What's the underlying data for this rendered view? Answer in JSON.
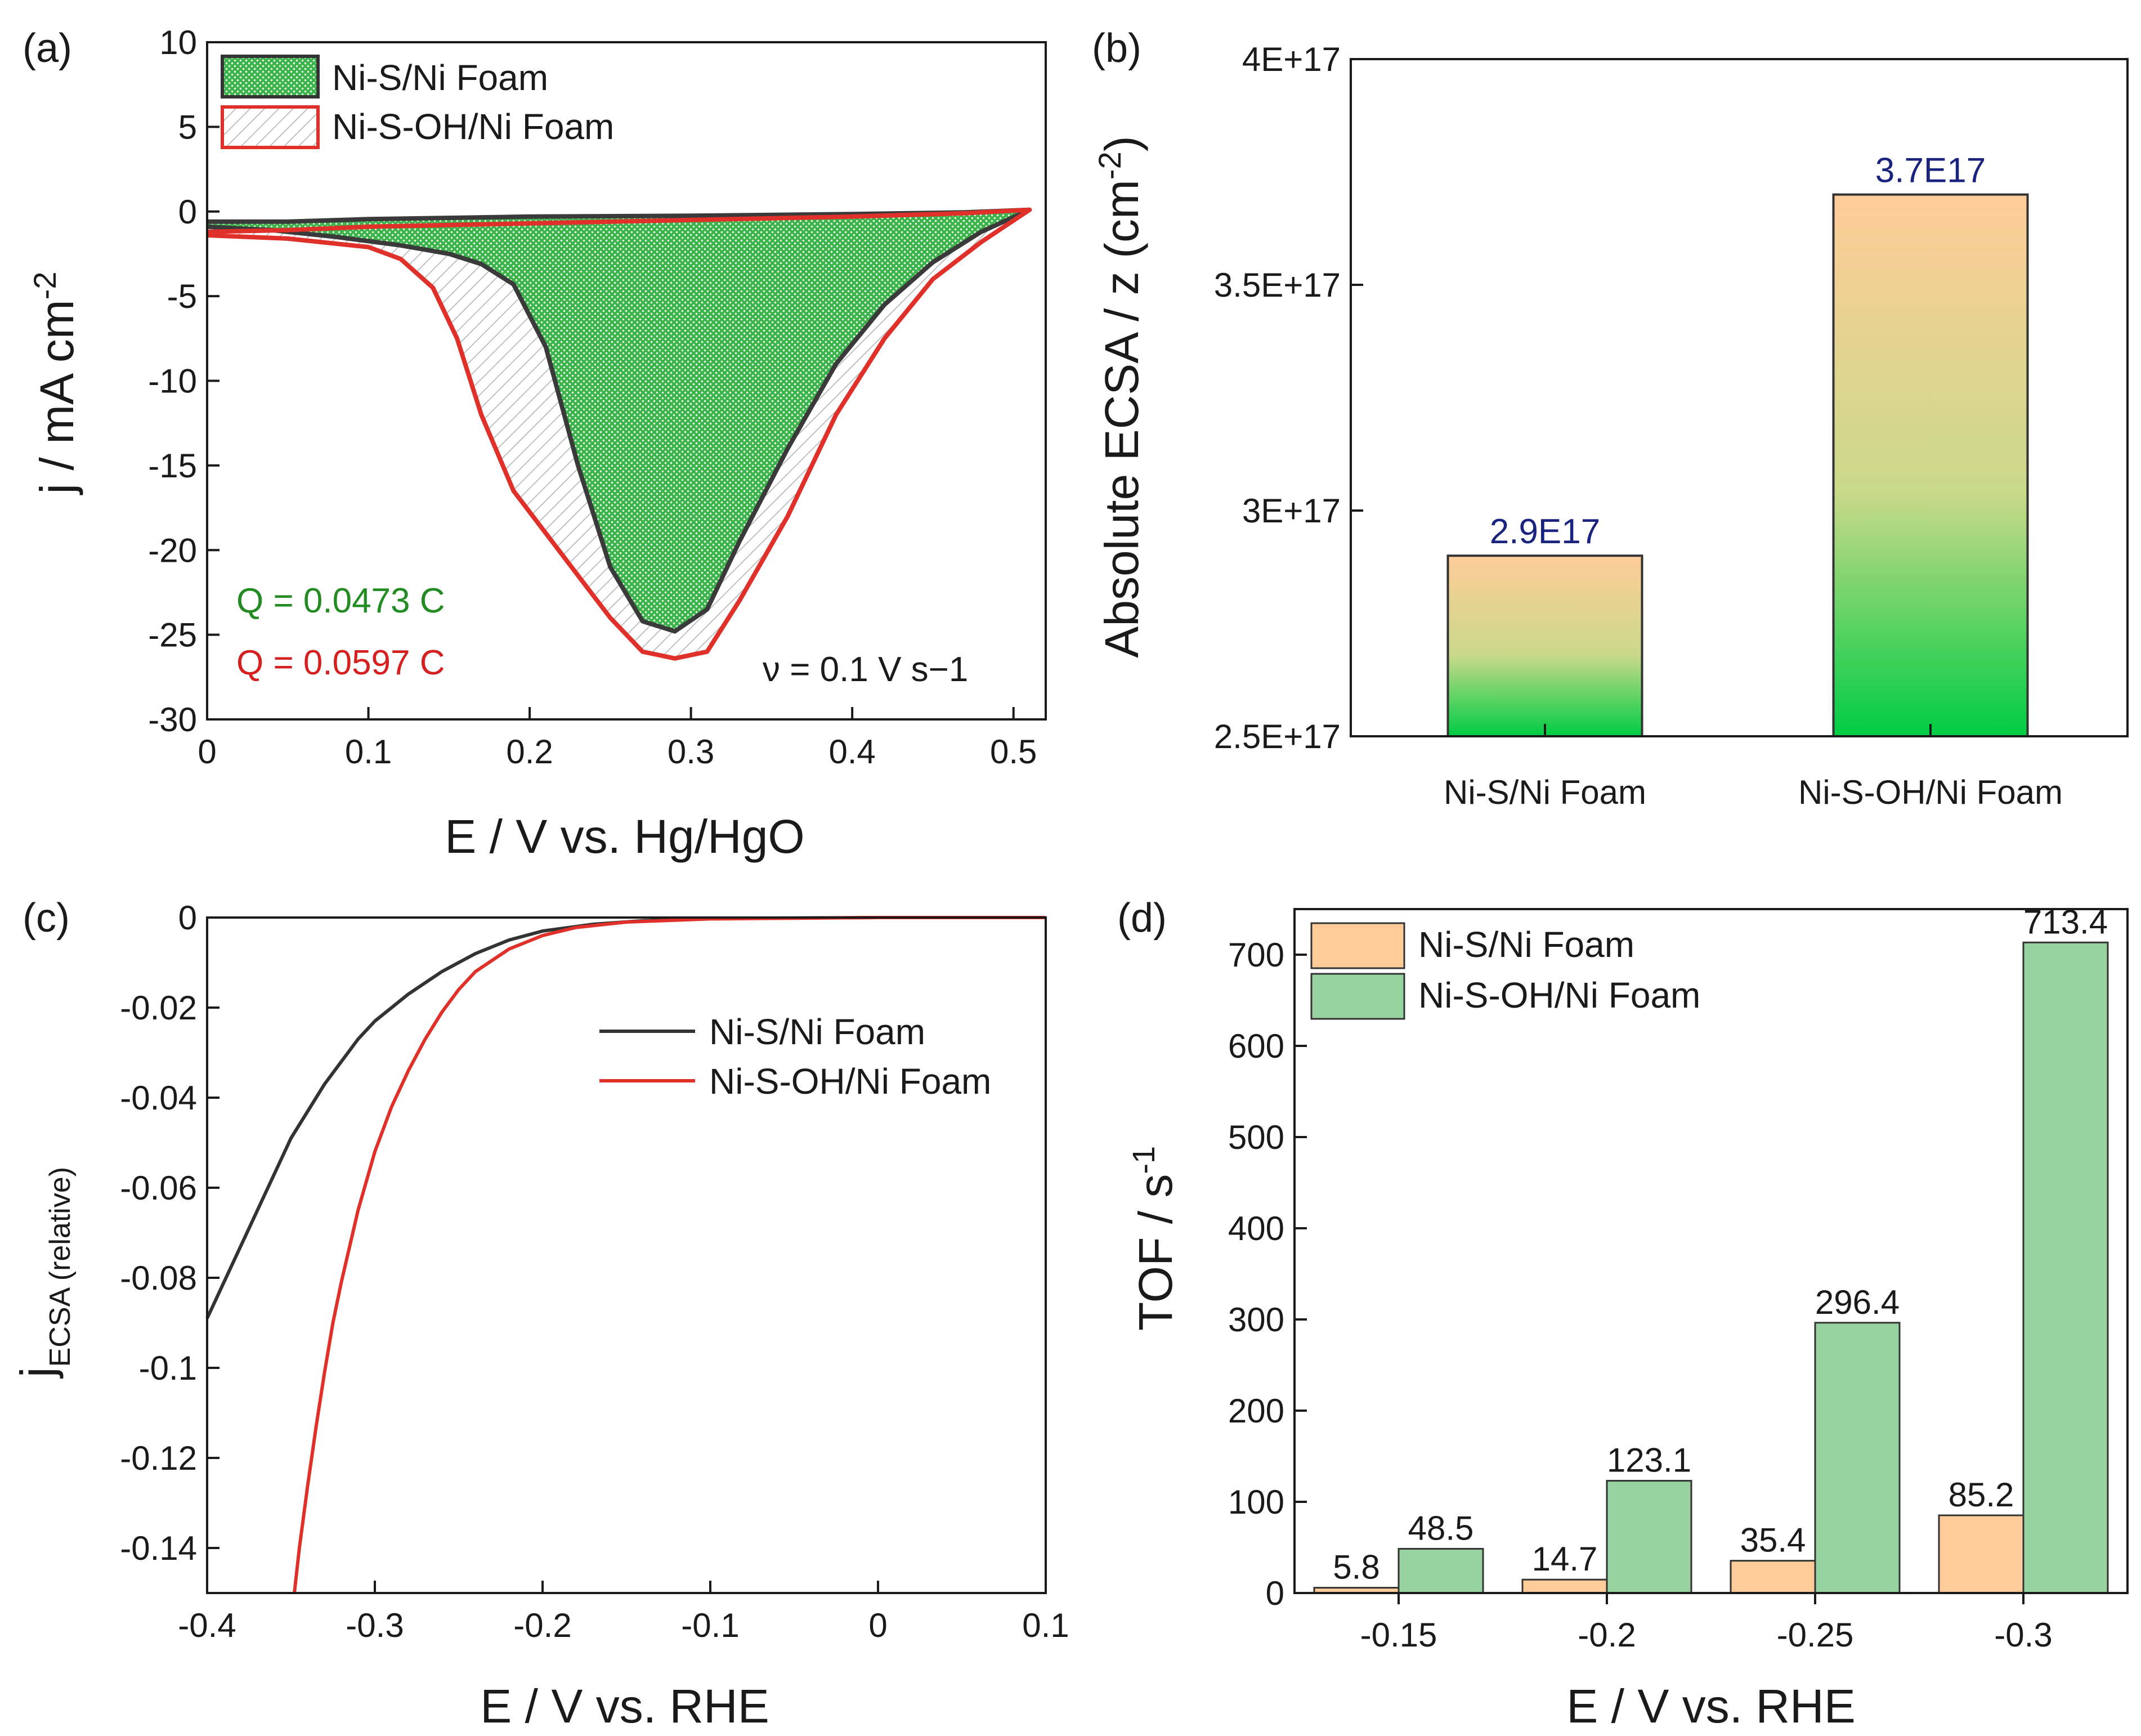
{
  "chart_data": [
    {
      "panel": "(a)",
      "type": "area",
      "xlabel": "E / V vs. Hg/HgO",
      "ylabel": "j / mA cm-2",
      "xlim": [
        0,
        0.52
      ],
      "ylim": [
        -30,
        10
      ],
      "xticks": [
        "0",
        "0.1",
        "0.2",
        "0.3",
        "0.4",
        "0.5"
      ],
      "yticks": [
        "10",
        "5",
        "0",
        "-5",
        "-10",
        "-15",
        "-20",
        "-25",
        "-30"
      ],
      "legend_position": "top-left",
      "series": [
        {
          "name": "Ni-S/Ni Foam",
          "color": "#3a3a3a",
          "fill": "#3cb44b",
          "forward": [
            [
              0,
              -0.6
            ],
            [
              0.05,
              -0.6
            ],
            [
              0.1,
              -0.45
            ],
            [
              0.2,
              -0.3
            ],
            [
              0.3,
              -0.25
            ],
            [
              0.4,
              -0.15
            ],
            [
              0.47,
              -0.05
            ],
            [
              0.51,
              0.1
            ]
          ],
          "reverse": [
            [
              0.51,
              0.1
            ],
            [
              0.48,
              -1.2
            ],
            [
              0.45,
              -3
            ],
            [
              0.42,
              -5.5
            ],
            [
              0.39,
              -9
            ],
            [
              0.36,
              -14
            ],
            [
              0.33,
              -19.5
            ],
            [
              0.31,
              -23.5
            ],
            [
              0.29,
              -24.8
            ],
            [
              0.27,
              -24.2
            ],
            [
              0.25,
              -21
            ],
            [
              0.23,
              -15
            ],
            [
              0.21,
              -8
            ],
            [
              0.19,
              -4.3
            ],
            [
              0.17,
              -3.1
            ],
            [
              0.15,
              -2.5
            ],
            [
              0.12,
              -2
            ],
            [
              0.08,
              -1.5
            ],
            [
              0.04,
              -1.1
            ],
            [
              0,
              -0.9
            ]
          ]
        },
        {
          "name": "Ni-S-OH/Ni Foam",
          "color": "#e0302a",
          "fill": "#bbbbbb",
          "forward": [
            [
              0,
              -1.2
            ],
            [
              0.05,
              -1.1
            ],
            [
              0.1,
              -0.9
            ],
            [
              0.2,
              -0.7
            ],
            [
              0.3,
              -0.5
            ],
            [
              0.4,
              -0.3
            ],
            [
              0.47,
              -0.1
            ],
            [
              0.51,
              0.1
            ]
          ],
          "reverse": [
            [
              0.51,
              0.1
            ],
            [
              0.48,
              -1.8
            ],
            [
              0.45,
              -4
            ],
            [
              0.42,
              -7.5
            ],
            [
              0.39,
              -12
            ],
            [
              0.36,
              -18
            ],
            [
              0.33,
              -23
            ],
            [
              0.31,
              -26
            ],
            [
              0.29,
              -26.4
            ],
            [
              0.27,
              -26
            ],
            [
              0.25,
              -24
            ],
            [
              0.23,
              -21.5
            ],
            [
              0.21,
              -19
            ],
            [
              0.19,
              -16.5
            ],
            [
              0.17,
              -12
            ],
            [
              0.155,
              -7.5
            ],
            [
              0.14,
              -4.5
            ],
            [
              0.12,
              -2.8
            ],
            [
              0.1,
              -2.1
            ],
            [
              0.05,
              -1.6
            ],
            [
              0,
              -1.4
            ]
          ]
        }
      ],
      "annotations": [
        {
          "text": "Q = 0.0473 C",
          "color": "#228b22"
        },
        {
          "text": "Q = 0.0597 C",
          "color": "#d62020"
        },
        {
          "text": "ν = 0.1 V s−1",
          "color": "#1a1a1a"
        }
      ]
    },
    {
      "panel": "(b)",
      "type": "bar",
      "ylabel": "Absolute ECSA / z (cm-2)",
      "ylim": [
        2.5e+17,
        4e+17
      ],
      "yticks": [
        "2.5E+17",
        "3E+17",
        "3.5E+17",
        "4E+17"
      ],
      "categories": [
        "Ni-S/Ni Foam",
        "Ni-S-OH/Ni Foam"
      ],
      "values": [
        2.9e+17,
        3.7e+17
      ],
      "data_labels": [
        "2.9E17",
        "3.7E17"
      ],
      "label_color": "#1a237e",
      "gradient": [
        "#ffcc99",
        "#00cc44"
      ]
    },
    {
      "panel": "(c)",
      "type": "line",
      "xlabel": "E / V vs. RHE",
      "ylabel": "jECSA (relative)",
      "xlim": [
        -0.4,
        0.1
      ],
      "ylim": [
        -0.15,
        0.0
      ],
      "xticks": [
        "-0.4",
        "-0.3",
        "-0.2",
        "-0.1",
        "0",
        "0.1"
      ],
      "yticks": [
        "0",
        "-0.02",
        "-0.04",
        "-0.06",
        "-0.08",
        "-0.1",
        "-0.12",
        "-0.14"
      ],
      "legend_position": "center-right",
      "series": [
        {
          "name": "Ni-S/Ni Foam",
          "color": "#333333",
          "points": [
            [
              -0.4,
              -0.089
            ],
            [
              -0.39,
              -0.081
            ],
            [
              -0.38,
              -0.073
            ],
            [
              -0.37,
              -0.065
            ],
            [
              -0.36,
              -0.057
            ],
            [
              -0.35,
              -0.049
            ],
            [
              -0.34,
              -0.043
            ],
            [
              -0.33,
              -0.037
            ],
            [
              -0.32,
              -0.032
            ],
            [
              -0.31,
              -0.027
            ],
            [
              -0.3,
              -0.023
            ],
            [
              -0.28,
              -0.017
            ],
            [
              -0.26,
              -0.012
            ],
            [
              -0.24,
              -0.008
            ],
            [
              -0.22,
              -0.005
            ],
            [
              -0.2,
              -0.003
            ],
            [
              -0.17,
              -0.0015
            ],
            [
              -0.14,
              -0.0007
            ],
            [
              -0.1,
              -0.0002
            ],
            [
              0,
              0
            ],
            [
              0.1,
              0
            ]
          ]
        },
        {
          "name": "Ni-S-OH/Ni Foam",
          "color": "#e0302a",
          "points": [
            [
              -0.348,
              -0.15
            ],
            [
              -0.345,
              -0.14
            ],
            [
              -0.34,
              -0.126
            ],
            [
              -0.335,
              -0.113
            ],
            [
              -0.33,
              -0.101
            ],
            [
              -0.325,
              -0.09
            ],
            [
              -0.32,
              -0.081
            ],
            [
              -0.31,
              -0.065
            ],
            [
              -0.3,
              -0.052
            ],
            [
              -0.29,
              -0.042
            ],
            [
              -0.28,
              -0.034
            ],
            [
              -0.27,
              -0.027
            ],
            [
              -0.26,
              -0.021
            ],
            [
              -0.25,
              -0.016
            ],
            [
              -0.24,
              -0.012
            ],
            [
              -0.22,
              -0.007
            ],
            [
              -0.2,
              -0.004
            ],
            [
              -0.18,
              -0.0022
            ],
            [
              -0.15,
              -0.001
            ],
            [
              -0.1,
              -0.0003
            ],
            [
              0,
              0
            ],
            [
              0.1,
              0
            ]
          ]
        }
      ]
    },
    {
      "panel": "(d)",
      "type": "bar",
      "xlabel": "E / V vs. RHE",
      "ylabel": "TOF / s-1",
      "ylim": [
        0,
        750
      ],
      "yticks": [
        "0",
        "100",
        "200",
        "300",
        "400",
        "500",
        "600",
        "700"
      ],
      "categories": [
        "-0.15",
        "-0.2",
        "-0.25",
        "-0.3"
      ],
      "legend_position": "top-left",
      "label_color": "#c62828",
      "series": [
        {
          "name": "Ni-S/Ni Foam",
          "color": "#ffcc99",
          "values": [
            5.8,
            14.7,
            35.4,
            85.2
          ],
          "labels": [
            "5.8",
            "14.7",
            "35.4",
            "85.2"
          ]
        },
        {
          "name": "Ni-S-OH/Ni Foam",
          "color": "#96d3a0",
          "values": [
            48.5,
            123.1,
            296.4,
            713.4
          ],
          "labels": [
            "48.5",
            "123.1",
            "296.4",
            "713.4"
          ]
        }
      ]
    }
  ]
}
